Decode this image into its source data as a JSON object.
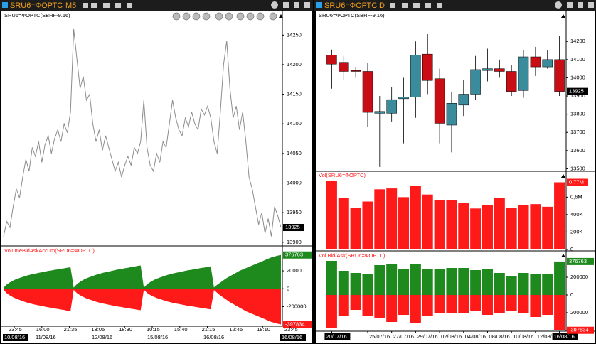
{
  "windows": [
    {
      "title": "SRU6=ФОРТС",
      "timeframe": "M5",
      "price_pane": {
        "type": "line",
        "label": "SRU6=ФОРТС(SBRF-9.16)",
        "color": "#8c8c8c",
        "values": [
          13910,
          13935,
          13925,
          13960,
          13990,
          13975,
          14010,
          14040,
          14020,
          14060,
          14045,
          14070,
          14035,
          14065,
          14080,
          14050,
          14075,
          14090,
          14070,
          14100,
          14085,
          14120,
          14260,
          14210,
          14160,
          14180,
          14140,
          14150,
          14100,
          14070,
          14090,
          14055,
          14080,
          14060,
          14040,
          14020,
          14035,
          14010,
          14030,
          14045,
          14030,
          14060,
          14050,
          14070,
          14140,
          14060,
          14030,
          14020,
          14050,
          14035,
          14070,
          14060,
          14100,
          14140,
          14110,
          14090,
          14080,
          14110,
          14095,
          14120,
          14100,
          14090,
          14125,
          14115,
          14130,
          14110,
          14070,
          14050,
          14120,
          14200,
          14240,
          14160,
          14110,
          14130,
          14090,
          14120,
          14070,
          14010,
          13990,
          13960,
          13930,
          13950,
          13915,
          13940,
          13910,
          13960,
          13945,
          13925
        ],
        "ylim": [
          13895,
          14290
        ],
        "yticks": [
          13900,
          13950,
          14000,
          14050,
          14100,
          14150,
          14200,
          14250
        ]
      },
      "accum_pane": {
        "type": "area",
        "label": "VolumeBidAskAccum(SRU6=ФОРТС)",
        "series": [
          {
            "color": "#1e8a1e",
            "values": [
              12000,
              48000,
              72000,
              91000,
              108000,
              120000,
              132000,
              144000,
              154000,
              163000,
              170000,
              178000,
              185000,
              192000,
              199000,
              204000,
              211000,
              216000,
              223000,
              228000,
              235000,
              240000,
              13000,
              52000,
              78000,
              99000,
              117000,
              130000,
              143000,
              156000,
              166000,
              177000,
              185000,
              192000,
              200000,
              208000,
              216000,
              221000,
              229000,
              234000,
              242000,
              247000,
              255000,
              260000,
              12000,
              50000,
              75000,
              95000,
              112000,
              125000,
              137000,
              150000,
              160000,
              170000,
              178000,
              185000,
              192000,
              200000,
              207000,
              212000,
              220000,
              225000,
              232000,
              237000,
              245000,
              250000,
              15000,
              45000,
              70000,
              95000,
              120000,
              140000,
              160000,
              180000,
              200000,
              215000,
              230000,
              245000,
              260000,
              275000,
              290000,
              305000,
              320000,
              335000,
              350000,
              360000,
              370000,
              376763
            ]
          },
          {
            "color": "#ff1a1a",
            "values": [
              -12000,
              -50000,
              -75000,
              -95000,
              -112000,
              -125000,
              -137000,
              -150000,
              -160000,
              -170000,
              -178000,
              -185000,
              -192000,
              -200000,
              -207000,
              -212000,
              -220000,
              -225000,
              -232000,
              -237000,
              -245000,
              -250000,
              -12000,
              -48000,
              -72000,
              -91000,
              -108000,
              -120000,
              -132000,
              -144000,
              -154000,
              -163000,
              -170000,
              -178000,
              -185000,
              -192000,
              -199000,
              -204000,
              -211000,
              -216000,
              -223000,
              -228000,
              -235000,
              -240000,
              -11000,
              -46000,
              -69000,
              -87000,
              -103000,
              -115000,
              -126000,
              -138000,
              -147000,
              -156000,
              -163000,
              -170000,
              -177000,
              -184000,
              -191000,
              -195000,
              -202000,
              -207000,
              -214000,
              -218000,
              -225000,
              -230000,
              -15000,
              -45000,
              -75000,
              -100000,
              -125000,
              -150000,
              -170000,
              -190000,
              -210000,
              -230000,
              -250000,
              -265000,
              -280000,
              -295000,
              -310000,
              -325000,
              -340000,
              -355000,
              -370000,
              -380000,
              -390000,
              -397834
            ]
          }
        ],
        "ylim": [
          -410000,
          470000
        ],
        "yticks": [
          -200000,
          0,
          200000
        ]
      },
      "time_labels": [
        "23:45",
        "16:00",
        "21:35",
        "13:05",
        "18:30",
        "10:15",
        "15:40",
        "21:15",
        "12:45",
        "18:10",
        "23:45"
      ],
      "date_labels": [
        "10/08/16",
        "11/08/16",
        "12/08/16",
        "15/08/16",
        "16/08/16",
        "16/08/16"
      ]
    },
    {
      "title": "SRU6=ФОРТС",
      "timeframe": "D",
      "candle_pane": {
        "type": "candlestick",
        "label": "SRU6=ФОРТС(SBRF-9.16)",
        "up_color": "#3a8c9c",
        "down_color": "#c80d14",
        "categories": [
          "20/07/16",
          null,
          null,
          "25/07/16",
          null,
          "27/07/16",
          null,
          "29/07/16",
          null,
          "02/08/16",
          null,
          "04/08/16",
          null,
          "08/08/16",
          null,
          "10/08/16",
          null,
          "12/08/16",
          null,
          "16/08/16"
        ],
        "open": [
          14125,
          14085,
          14040,
          14035,
          13805,
          13805,
          13885,
          13895,
          14130,
          13995,
          13740,
          13850,
          13910,
          14040,
          14050,
          14035,
          13930,
          14115,
          14060,
          14100
        ],
        "high": [
          14155,
          14120,
          14060,
          14080,
          13900,
          13950,
          14000,
          14200,
          14240,
          14050,
          13920,
          13990,
          14120,
          14160,
          14100,
          14070,
          14150,
          14170,
          14150,
          14230
        ],
        "low": [
          13940,
          13990,
          14000,
          13730,
          13510,
          13760,
          13640,
          13780,
          13910,
          13640,
          13590,
          13790,
          13880,
          13980,
          14000,
          13900,
          13890,
          14010,
          14050,
          13900
        ],
        "close": [
          14075,
          14035,
          14035,
          13810,
          13815,
          13880,
          13895,
          14125,
          13985,
          13750,
          13860,
          13910,
          14045,
          14050,
          14035,
          13925,
          14115,
          14060,
          14100,
          13925
        ],
        "ylim": [
          13490,
          14365
        ],
        "yticks": [
          13500,
          13600,
          13700,
          13800,
          13900,
          14000,
          14100,
          14200
        ]
      },
      "vol_pane": {
        "type": "bar",
        "label": "Vol(SRU6=ФОРТС)",
        "color": "#ff1a1a",
        "values": [
          790000,
          590000,
          480000,
          550000,
          690000,
          700000,
          600000,
          730000,
          630000,
          570000,
          570000,
          530000,
          470000,
          510000,
          590000,
          480000,
          510000,
          520000,
          490000,
          770000
        ],
        "value_labels": [
          null,
          null,
          null,
          null,
          null,
          null,
          null,
          null,
          null,
          null,
          null,
          null,
          null,
          null,
          null,
          null,
          null,
          null,
          null,
          "0,77M"
        ],
        "ylim": [
          0,
          880000
        ],
        "yticks": [
          0,
          {
            "value": 200000,
            "label": "200K"
          },
          {
            "value": 400000,
            "label": "400K"
          },
          {
            "value": 600000,
            "label": "0,6M"
          }
        ]
      },
      "bidask_pane": {
        "type": "bar",
        "label": "Vol Bid/Ask(SRU6=ФОРТС)",
        "series": [
          {
            "color": "#1e8a1e",
            "values": [
              384000,
              272000,
              248000,
              240000,
              336000,
              344000,
              296000,
              352000,
              296000,
              288000,
              304000,
              304000,
              280000,
              288000,
              248000,
              216000,
              248000,
              240000,
              240000,
              376763
            ]
          },
          {
            "color": "#ff1a1a",
            "values": [
              -368000,
              -240000,
              -168000,
              -240000,
              -264000,
              -304000,
              -224000,
              -312000,
              -240000,
              -200000,
              -208000,
              -208000,
              -184000,
              -224000,
              -208000,
              -176000,
              -208000,
              -248000,
              -224000,
              -397834
            ]
          }
        ],
        "ylim": [
          -400000,
          480000
        ],
        "yticks": [
          {
            "value": -200000,
            "label": "200000"
          },
          0,
          200000
        ]
      }
    }
  ]
}
